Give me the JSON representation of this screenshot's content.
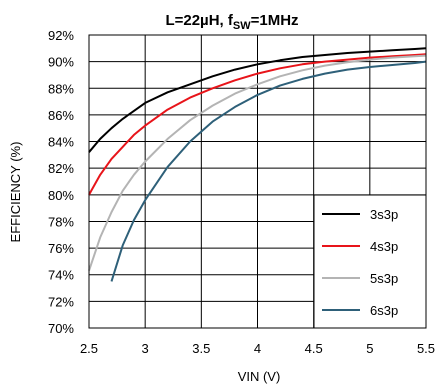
{
  "chart_data": {
    "type": "line",
    "title_main": "L=22µH, f",
    "title_sub": "SW",
    "title_end": "=1MHz",
    "xlabel": "VIN (V)",
    "ylabel": "EFFICIENCY (%)",
    "xlim": [
      2.5,
      5.5
    ],
    "ylim": [
      70,
      92
    ],
    "x_ticks": [
      2.5,
      3,
      3.5,
      4,
      4.5,
      5,
      5.5
    ],
    "x_tick_labels": [
      "2.5",
      "3",
      "3.5",
      "4",
      "4.5",
      "5",
      "5.5"
    ],
    "y_ticks": [
      70,
      72,
      74,
      76,
      78,
      80,
      82,
      84,
      86,
      88,
      90,
      92
    ],
    "y_tick_labels": [
      "70%",
      "72%",
      "74%",
      "76%",
      "78%",
      "80%",
      "82%",
      "84%",
      "86%",
      "88%",
      "90%",
      "92%"
    ],
    "grid": true,
    "legend_position": "bottom-right",
    "series": [
      {
        "name": "3s3p",
        "color": "#000000",
        "x": [
          2.5,
          2.6,
          2.7,
          2.8,
          2.9,
          3.0,
          3.2,
          3.4,
          3.6,
          3.8,
          4.0,
          4.2,
          4.4,
          4.6,
          4.8,
          5.0,
          5.2,
          5.4,
          5.5
        ],
        "y": [
          83.2,
          84.2,
          85.0,
          85.7,
          86.3,
          86.9,
          87.7,
          88.3,
          88.9,
          89.4,
          89.8,
          90.1,
          90.35,
          90.5,
          90.65,
          90.75,
          90.85,
          90.95,
          91.0
        ]
      },
      {
        "name": "4s3p",
        "color": "#e8141a",
        "x": [
          2.5,
          2.6,
          2.7,
          2.8,
          2.9,
          3.0,
          3.2,
          3.4,
          3.6,
          3.8,
          4.0,
          4.2,
          4.4,
          4.6,
          4.8,
          5.0,
          5.2,
          5.4,
          5.5
        ],
        "y": [
          80.0,
          81.5,
          82.7,
          83.6,
          84.5,
          85.2,
          86.4,
          87.3,
          88.0,
          88.6,
          89.1,
          89.5,
          89.8,
          90.0,
          90.15,
          90.3,
          90.4,
          90.5,
          90.55
        ]
      },
      {
        "name": "5s3p",
        "color": "#b4b4b4",
        "x": [
          2.5,
          2.6,
          2.7,
          2.8,
          2.9,
          3.0,
          3.2,
          3.4,
          3.6,
          3.8,
          4.0,
          4.2,
          4.4,
          4.6,
          4.8,
          5.0,
          5.2,
          5.4,
          5.5
        ],
        "y": [
          74.3,
          76.8,
          78.7,
          80.3,
          81.5,
          82.5,
          84.2,
          85.6,
          86.7,
          87.6,
          88.3,
          88.9,
          89.35,
          89.7,
          89.95,
          90.15,
          90.3,
          90.4,
          90.45
        ]
      },
      {
        "name": "6s3p",
        "color": "#2e6079",
        "x": [
          2.7,
          2.8,
          2.9,
          3.0,
          3.2,
          3.4,
          3.6,
          3.8,
          4.0,
          4.2,
          4.4,
          4.6,
          4.8,
          5.0,
          5.2,
          5.4,
          5.5
        ],
        "y": [
          73.5,
          76.2,
          78.1,
          79.6,
          82.1,
          84.0,
          85.5,
          86.6,
          87.5,
          88.2,
          88.7,
          89.1,
          89.4,
          89.6,
          89.75,
          89.9,
          90.0
        ]
      }
    ]
  }
}
